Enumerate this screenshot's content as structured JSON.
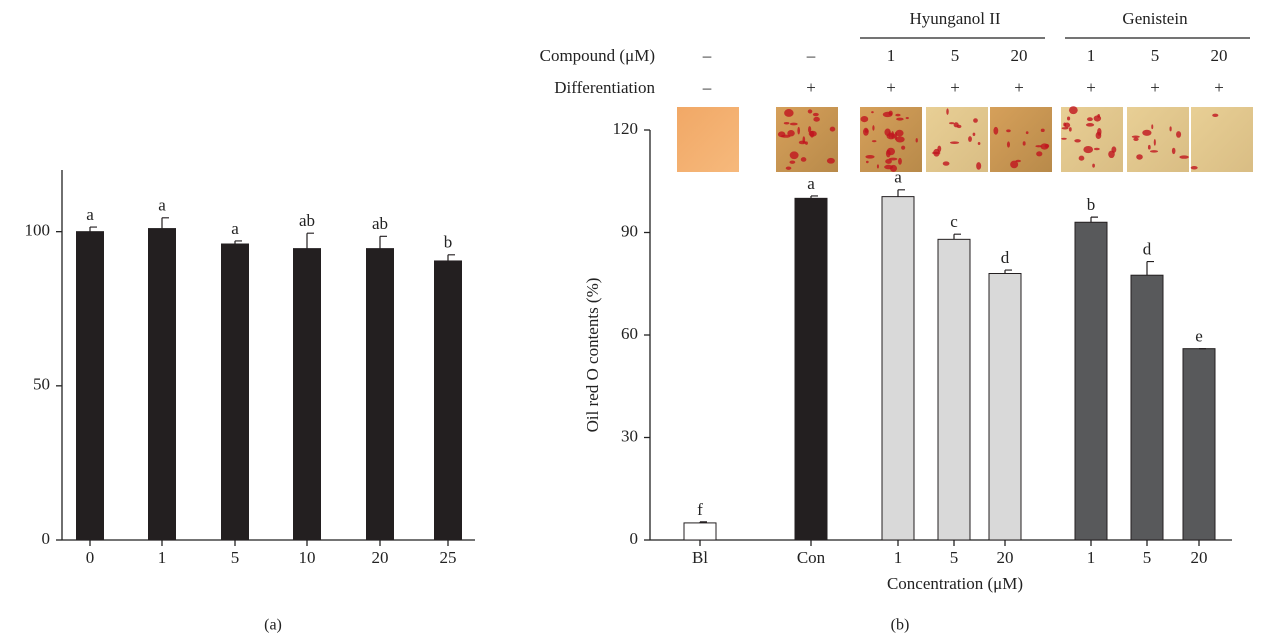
{
  "chart_data": [
    {
      "type": "bar",
      "caption": "(a)",
      "categories": [
        "0",
        "1",
        "5",
        "10",
        "20",
        "25"
      ],
      "values": [
        100,
        101,
        96,
        94.5,
        94.5,
        90.5
      ],
      "errors": [
        1.5,
        3.5,
        1,
        5,
        4,
        2
      ],
      "letters": [
        "a",
        "a",
        "a",
        "ab",
        "ab",
        "b"
      ],
      "colors": [
        "#231f20",
        "#231f20",
        "#231f20",
        "#231f20",
        "#231f20",
        "#231f20"
      ],
      "ylim": [
        0,
        120
      ],
      "yticks": [
        0,
        50,
        100
      ]
    },
    {
      "type": "bar",
      "caption": "(b)",
      "ylabel": "Oil red O contents (%)",
      "xlabel": "Concentration (μM)",
      "categories": [
        "Bl",
        "Con",
        "1",
        "5",
        "20",
        "1",
        "5",
        "20"
      ],
      "values": [
        5,
        100,
        100.5,
        88,
        78,
        93,
        77.5,
        56
      ],
      "errors": [
        0.3,
        0.7,
        2,
        1.5,
        1,
        1.5,
        4,
        0
      ],
      "letters": [
        "f",
        "a",
        "a",
        "c",
        "d",
        "b",
        "d",
        "e"
      ],
      "colors": [
        "#ffffff",
        "#231f20",
        "#d9d9d9",
        "#d9d9d9",
        "#d9d9d9",
        "#58595b",
        "#58595b",
        "#58595b"
      ],
      "ylim": [
        0,
        120
      ],
      "yticks": [
        0,
        30,
        60,
        90,
        120
      ],
      "header": {
        "groups": [
          "Hyunganol II",
          "Genistein"
        ],
        "rows": [
          {
            "label": "Compound (μM)",
            "cells": [
              "–",
              "–",
              "1",
              "5",
              "20",
              "1",
              "5",
              "20"
            ]
          },
          {
            "label": "Differentiation",
            "cells": [
              "–",
              "+",
              "+",
              "+",
              "+",
              "+",
              "+",
              "+"
            ]
          }
        ]
      }
    }
  ]
}
